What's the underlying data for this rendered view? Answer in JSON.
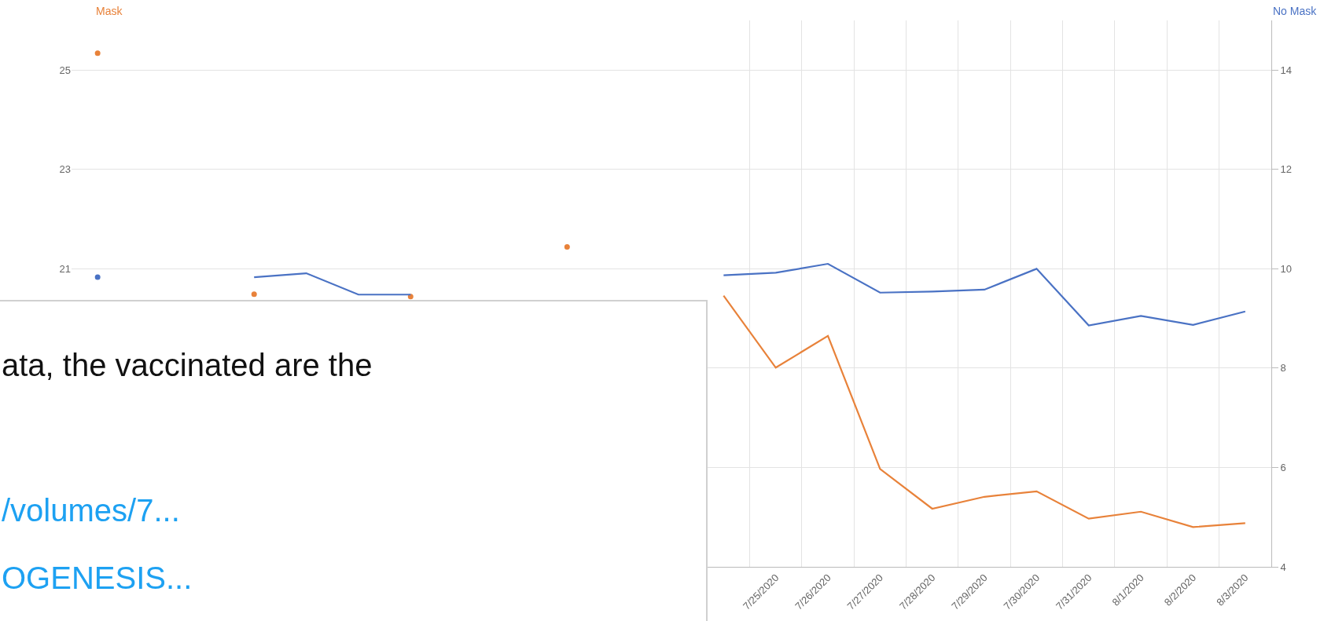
{
  "chart_data": {
    "type": "line",
    "ylabel": "Mask",
    "y2label": "No Mask",
    "categories": [
      null,
      null,
      null,
      null,
      null,
      null,
      null,
      null,
      null,
      null,
      null,
      null,
      null,
      "7/25/2020",
      "7/26/2020",
      "7/27/2020",
      "7/28/2020",
      "7/29/2020",
      "7/30/2020",
      "7/31/2020",
      "8/1/2020",
      "8/2/2020",
      "8/3/2020"
    ],
    "series": [
      {
        "color": "#e8823a",
        "values": [
          25.34,
          null,
          null,
          20.49,
          null,
          null,
          20.44,
          null,
          null,
          21.44,
          null,
          null,
          20.46,
          19.01,
          19.65,
          16.97,
          16.17,
          16.41,
          16.52,
          15.97,
          16.11,
          15.8,
          15.88
        ]
      },
      {
        "color": "#4a72c4",
        "axis": "y2",
        "values": [
          9.83,
          null,
          null,
          9.83,
          9.91,
          9.48,
          9.48,
          null,
          null,
          null,
          null,
          null,
          9.87,
          9.92,
          10.1,
          9.52,
          9.54,
          9.58,
          10.0,
          8.86,
          9.05,
          8.87,
          9.14
        ]
      }
    ],
    "ylim": [
      15,
      26
    ],
    "yticks": [
      21,
      23,
      25
    ],
    "y2lim": [
      4,
      15
    ],
    "y2ticks": [
      4,
      6,
      8,
      10,
      12,
      14
    ],
    "grid": true,
    "marker": "none",
    "line_style": "solid",
    "annotations": [
      "ata, the vaccinated are the",
      "/volumes/7...",
      "OGENESIS..."
    ]
  }
}
